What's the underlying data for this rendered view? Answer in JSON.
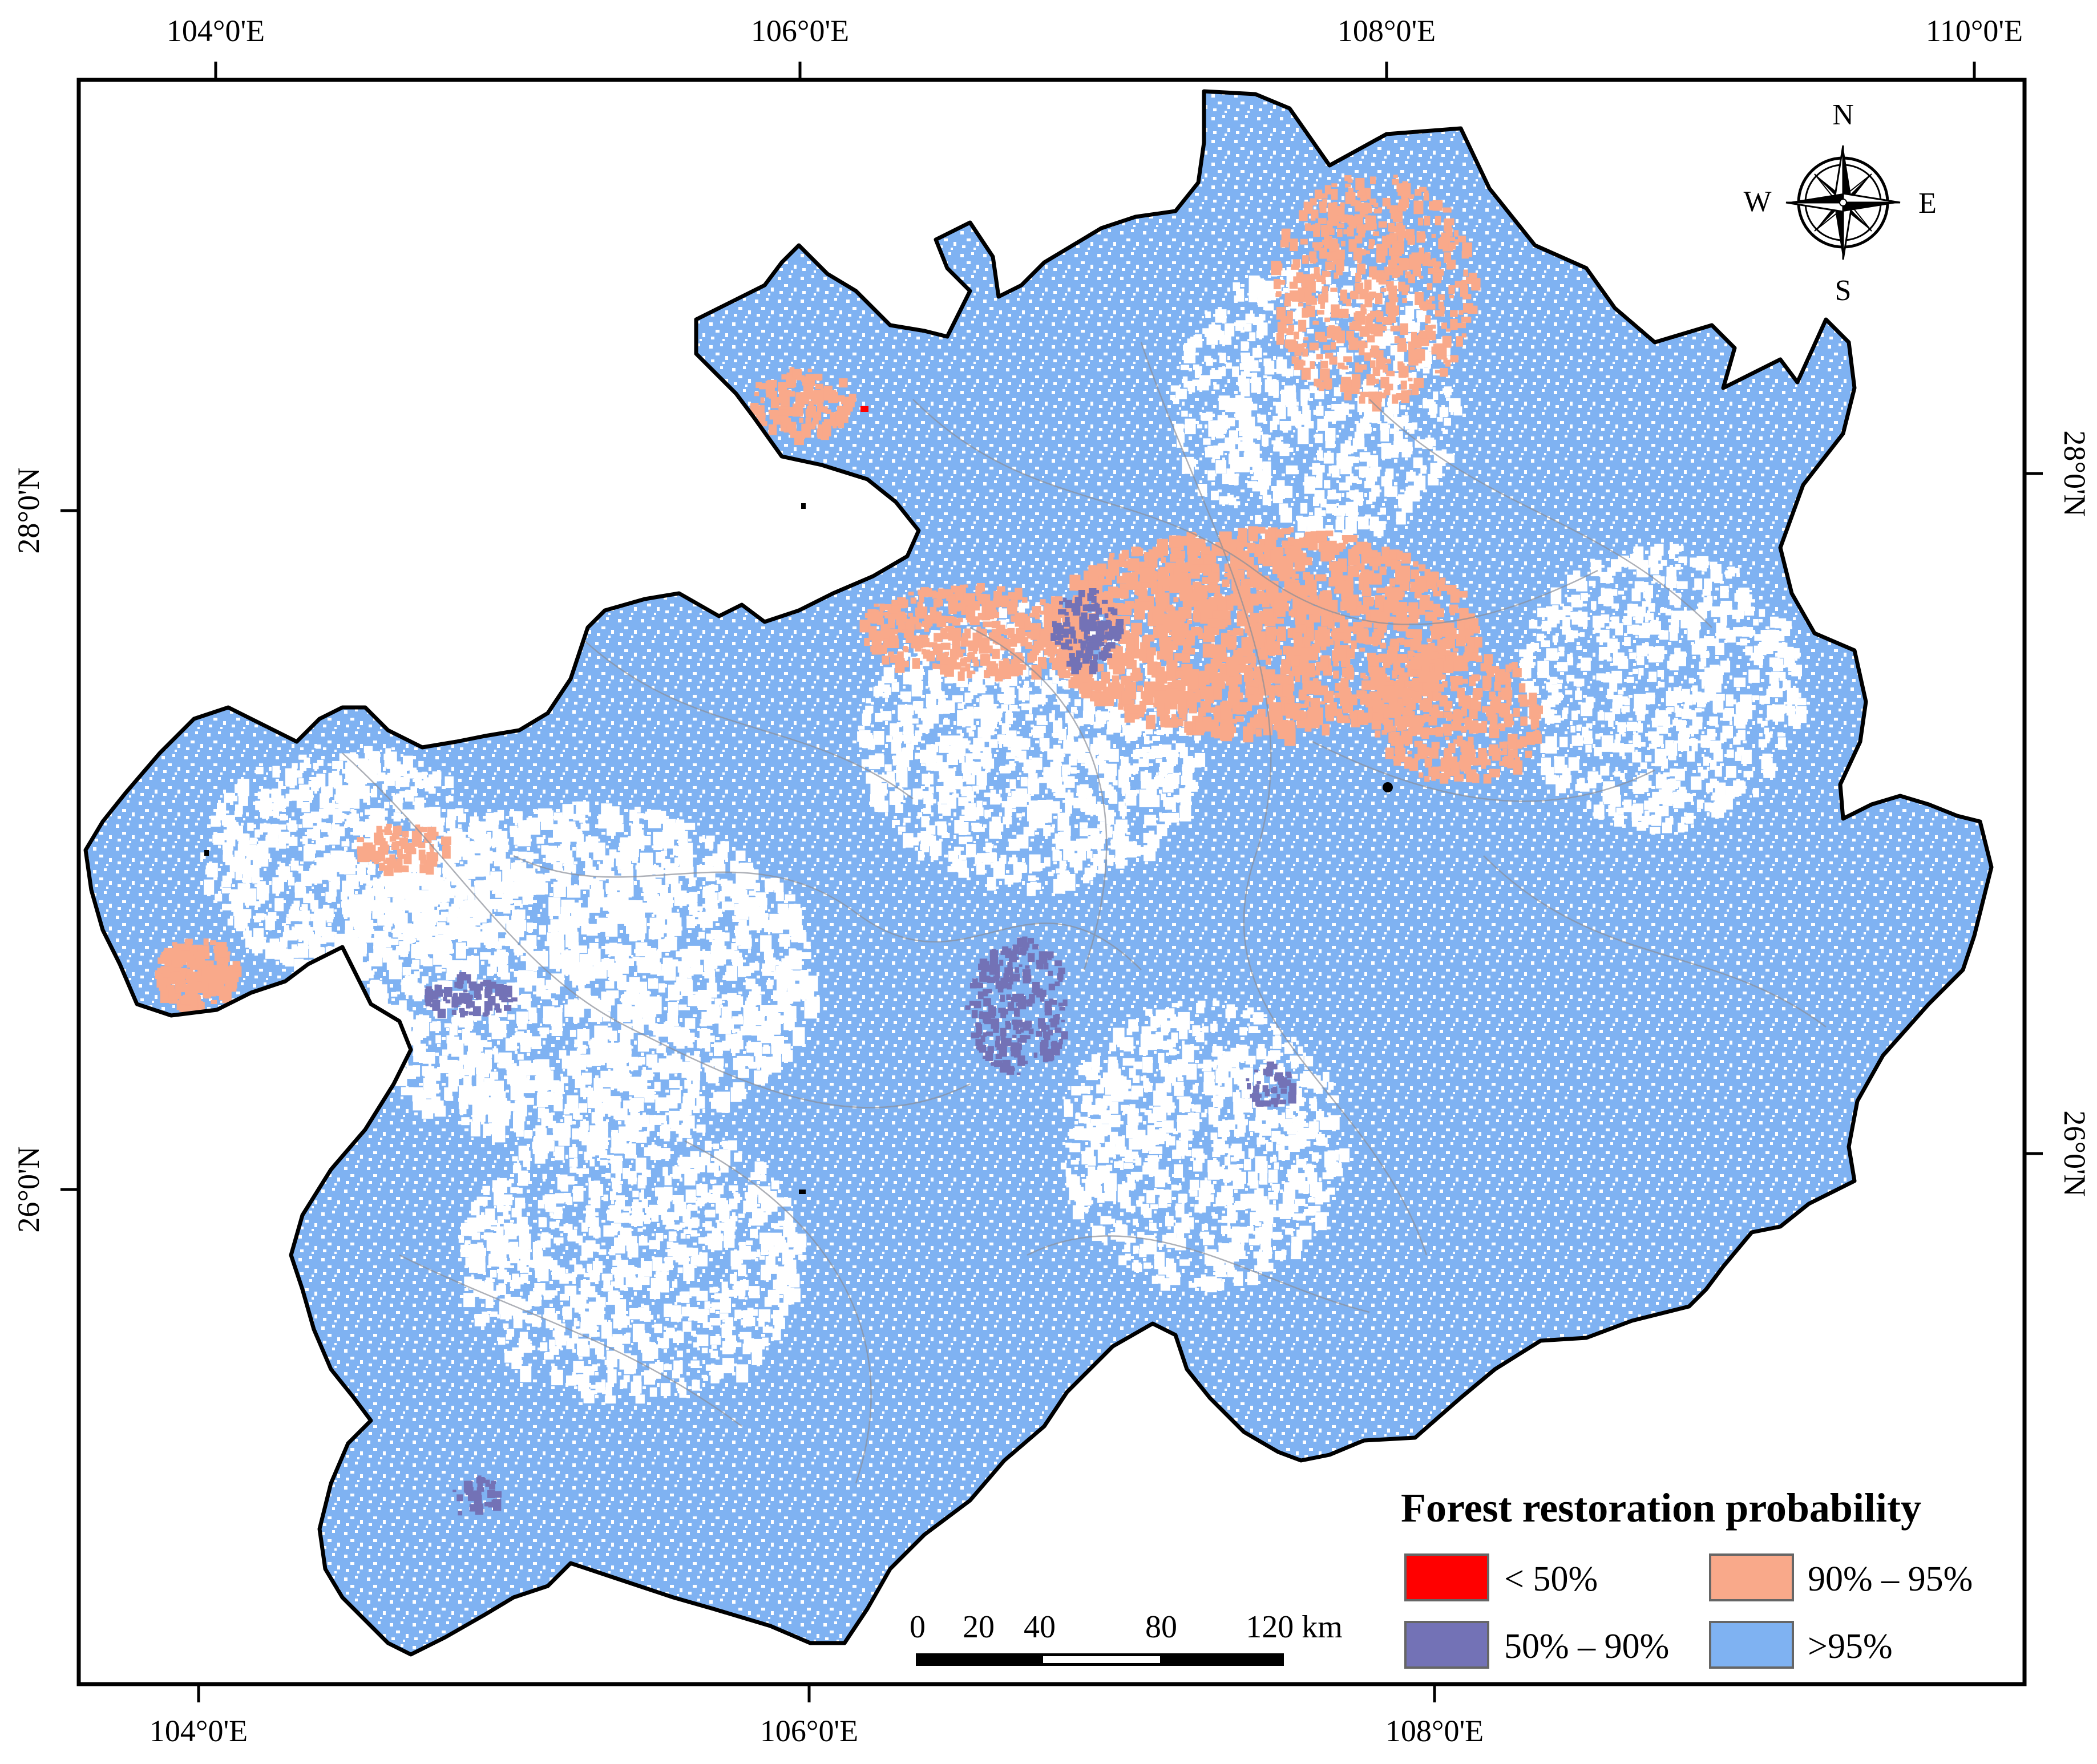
{
  "map": {
    "top_ticks": [
      "104°0'E",
      "106°0'E",
      "108°0'E",
      "110°0'E"
    ],
    "bottom_ticks": [
      "104°0'E",
      "106°0'E",
      "108°0'E"
    ],
    "left_ticks": [
      "28°0'N",
      "26°0'N"
    ],
    "right_ticks": [
      "28°0'N",
      "26°0'N"
    ],
    "north_arrow": {
      "n": "N",
      "s": "S",
      "e": "E",
      "w": "W"
    },
    "scale_bar": {
      "labels": [
        "0",
        "20",
        "40",
        "80",
        "120 km"
      ]
    },
    "legend": {
      "title": "Forest restoration probability",
      "items": [
        {
          "label": "< 50%",
          "color": "#ff0000"
        },
        {
          "label": "90% – 95%",
          "color": "#f9a98a"
        },
        {
          "label": "50% – 90%",
          "color": "#7372b6"
        },
        {
          "label": ">95%",
          "color": "#7fb2f2"
        }
      ]
    },
    "colors": {
      "high": "#7fb2f2",
      "mid_high": "#f9a98a",
      "mid": "#7372b6",
      "low": "#ff0000",
      "boundary": "#000000",
      "county_lines": "#8a8f99"
    }
  }
}
